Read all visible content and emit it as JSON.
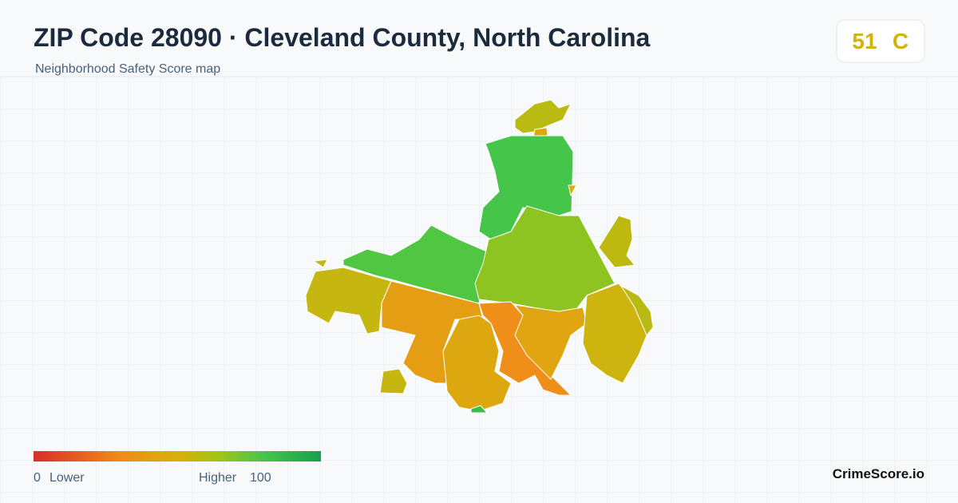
{
  "header": {
    "title": "ZIP Code 28090 · Cleveland County, North Carolina",
    "subtitle": "Neighborhood Safety Score map"
  },
  "score": {
    "value": 51,
    "grade": "C"
  },
  "map": {
    "regions": [
      58,
      45,
      80,
      78,
      68,
      57,
      55,
      55,
      40,
      46,
      32,
      44,
      53,
      58,
      55,
      85,
      50
    ]
  },
  "legend": {
    "min": 0,
    "min_label": "Lower",
    "max": 100,
    "max_label": "Higher"
  },
  "brand": "CrimeScore.io"
}
